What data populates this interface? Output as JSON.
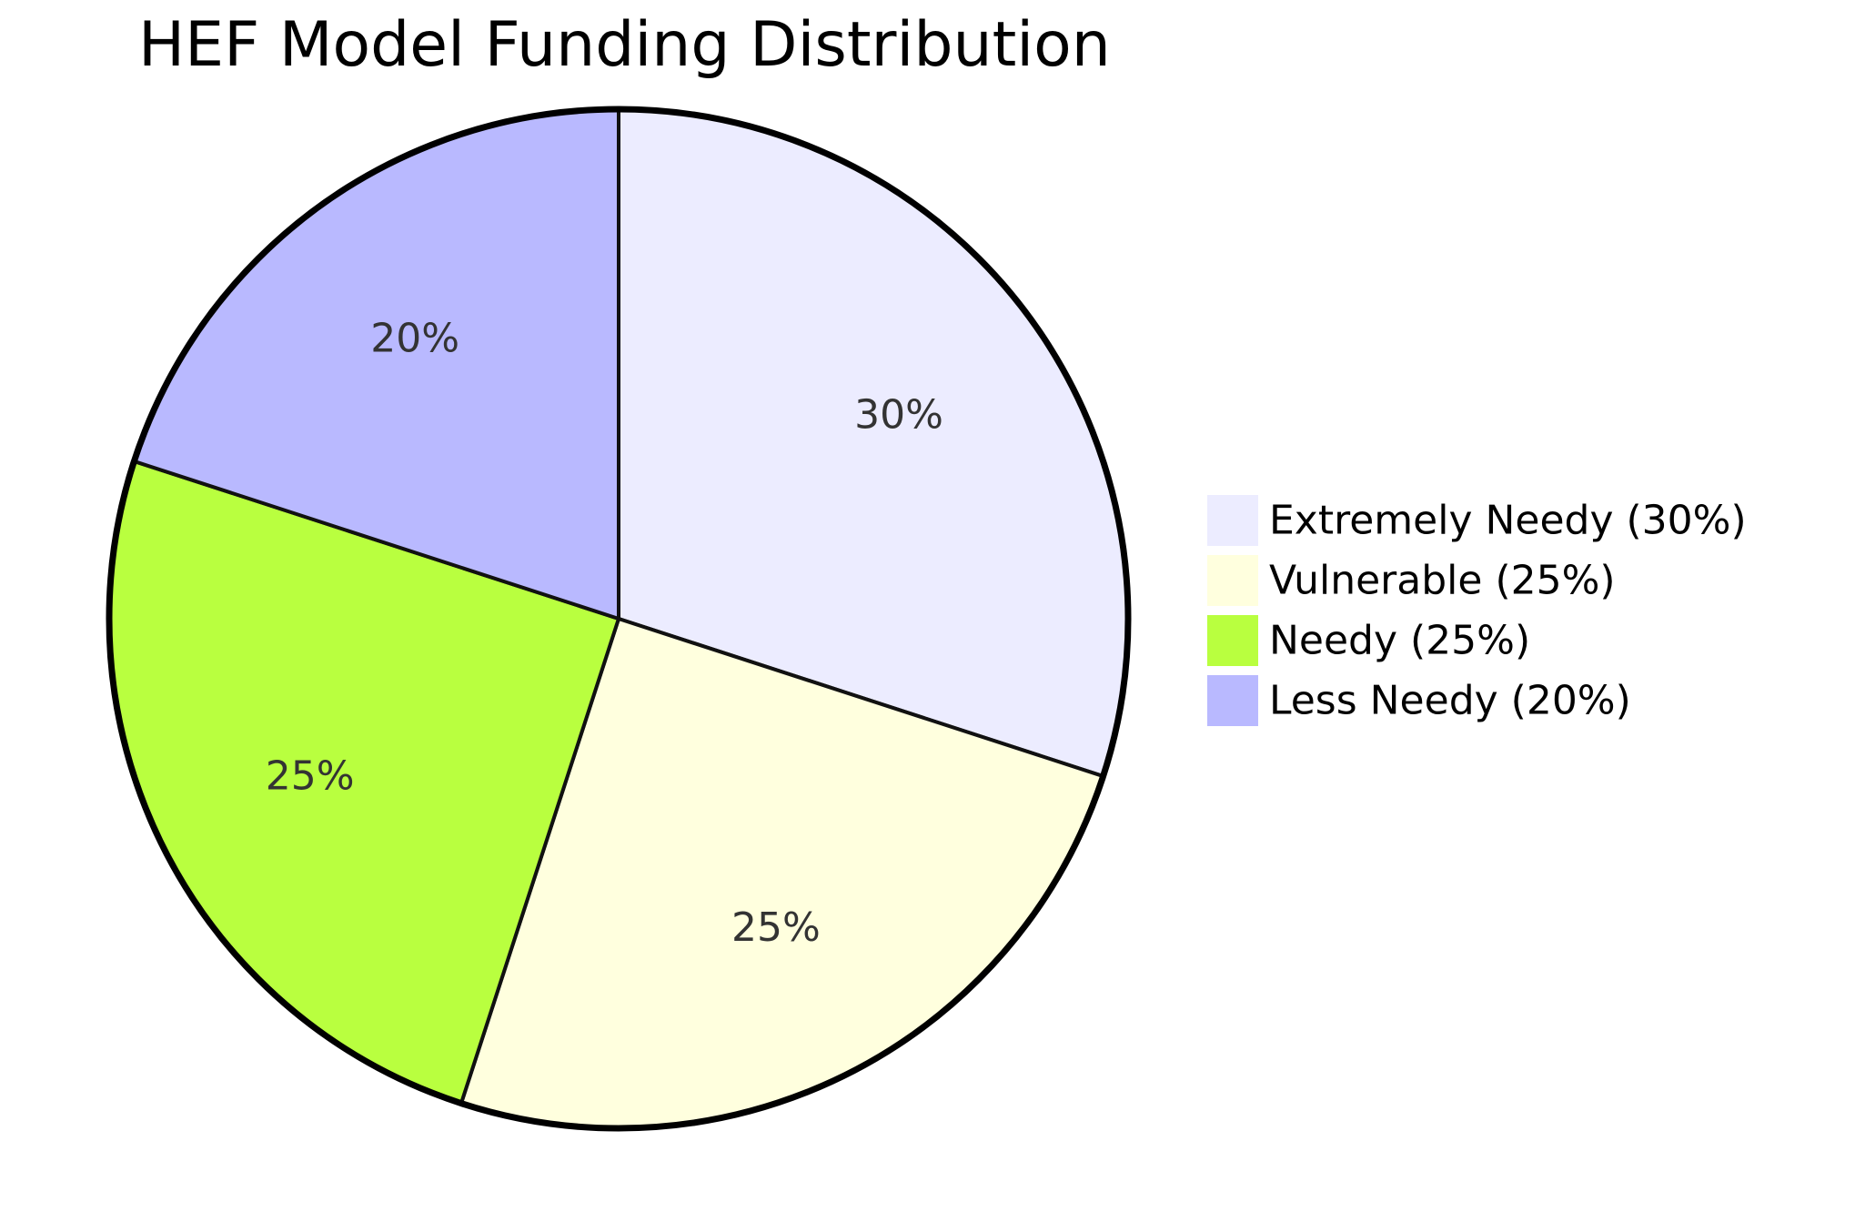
{
  "chart_data": {
    "type": "pie",
    "title": "HEF Model Funding Distribution",
    "slices": [
      {
        "label": "Extremely Needy",
        "value": 30,
        "color": "#ececff",
        "display": "30%"
      },
      {
        "label": "Vulnerable",
        "value": 25,
        "color": "#ffffde",
        "display": "25%"
      },
      {
        "label": "Needy",
        "value": 25,
        "color": "#b9ff3f",
        "display": "25%"
      },
      {
        "label": "Less Needy",
        "value": 20,
        "color": "#b9b9ff",
        "display": "20%"
      }
    ],
    "legend": {
      "placement": "right",
      "entries": [
        "Extremely Needy (30%)",
        "Vulnerable (25%)",
        "Needy (25%)",
        "Less Needy (20%)"
      ]
    }
  }
}
